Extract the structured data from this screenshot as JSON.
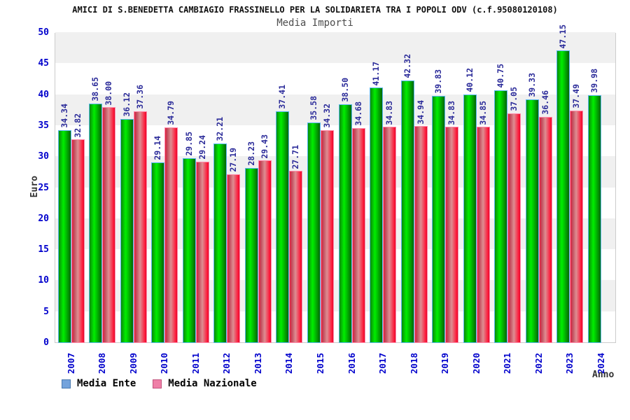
{
  "header": {
    "title": "AMICI DI S.BENEDETTA CAMBIAGIO FRASSINELLO PER LA SOLIDARIETA TRA I POPOLI ODV (c.f.95080120108)",
    "subtitle": "Media Importi"
  },
  "chart_data": {
    "type": "bar",
    "title": "Media Importi",
    "xlabel": "Anno",
    "ylabel": "Euro",
    "ylim": [
      0,
      50
    ],
    "ytick_step": 5,
    "grid": "alternating-horizontal-bands",
    "legend_position": "bottom-left",
    "value_label_format": "2-decimals-rotated-90",
    "categories": [
      "2007",
      "2008",
      "2009",
      "2010",
      "2011",
      "2012",
      "2013",
      "2014",
      "2015",
      "2016",
      "2017",
      "2018",
      "2019",
      "2020",
      "2021",
      "2022",
      "2023",
      "2024"
    ],
    "series": [
      {
        "name": "Media Ente",
        "legend_swatch_color": "#74a3dc",
        "legend_swatch_border": "#4a7ab0",
        "bar_style": "green-gradient",
        "values": [
          34.34,
          38.65,
          36.12,
          29.14,
          29.85,
          32.21,
          28.23,
          37.41,
          35.58,
          38.5,
          41.17,
          42.32,
          39.83,
          40.12,
          40.75,
          39.33,
          47.15,
          39.98
        ]
      },
      {
        "name": "Media Nazionale",
        "legend_swatch_color": "#ef7fa7",
        "legend_swatch_border": "#c2537d",
        "bar_style": "red-gradient",
        "values": [
          32.82,
          38.0,
          37.36,
          34.79,
          29.24,
          27.19,
          29.43,
          27.71,
          34.32,
          34.68,
          34.83,
          34.94,
          34.83,
          34.85,
          37.05,
          36.46,
          37.49,
          null
        ]
      }
    ]
  },
  "colors": {
    "tick_label": "#0000cc",
    "value_label": "#2a2a99",
    "band_gray": "#f0f0f0",
    "plot_border": "#cccccc",
    "green_bright": "#00ee00",
    "green_border": "#58b8ee",
    "red_bright": "#e02040",
    "red_bright2": "#ff1133",
    "red_light": "#de8d92",
    "red_border": "#ff8aaa"
  }
}
